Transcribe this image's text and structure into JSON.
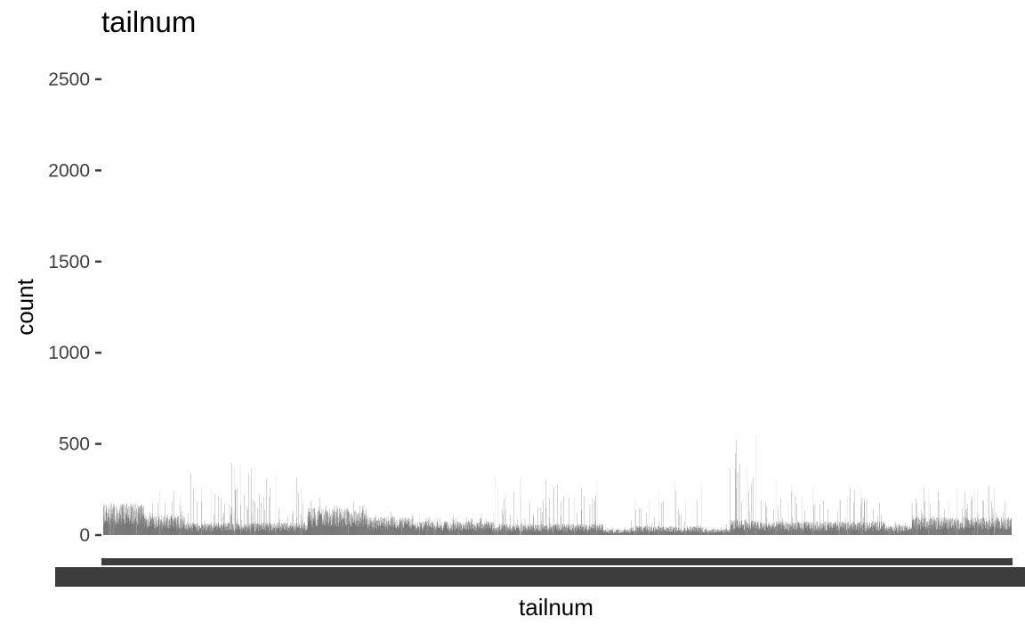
{
  "chart_data": {
    "type": "bar",
    "title": "tailnum",
    "xlabel": "tailnum",
    "ylabel": "count",
    "ylim": [
      0,
      2500
    ],
    "y_ticks": [
      0,
      500,
      1000,
      1500,
      2000,
      2500
    ],
    "grid": false,
    "legend": "none",
    "bar_color": "#3d3d3d",
    "series": [
      {
        "approx_category_count": 4044,
        "segments": [
          {
            "from": 0.0,
            "to": 0.045,
            "base": 140,
            "spikes": 190
          },
          {
            "from": 0.045,
            "to": 0.09,
            "base": 90,
            "spikes": 260
          },
          {
            "from": 0.09,
            "to": 0.225,
            "base": 55,
            "spikes": 400
          },
          {
            "from": 0.225,
            "to": 0.29,
            "base": 120,
            "spikes": 210
          },
          {
            "from": 0.29,
            "to": 0.34,
            "base": 80,
            "spikes": 130
          },
          {
            "from": 0.34,
            "to": 0.43,
            "base": 60,
            "spikes": 120
          },
          {
            "from": 0.43,
            "to": 0.55,
            "base": 50,
            "spikes": 330
          },
          {
            "from": 0.55,
            "to": 0.58,
            "base": 25,
            "spikes": 60
          },
          {
            "from": 0.58,
            "to": 0.66,
            "base": 40,
            "spikes": 300
          },
          {
            "from": 0.66,
            "to": 0.69,
            "base": 30,
            "spikes": 80
          },
          {
            "from": 0.69,
            "to": 0.72,
            "base": 70,
            "spikes": 570
          },
          {
            "from": 0.72,
            "to": 0.86,
            "base": 60,
            "spikes": 300
          },
          {
            "from": 0.86,
            "to": 0.89,
            "base": 45,
            "spikes": 90
          },
          {
            "from": 0.89,
            "to": 1.0,
            "base": 80,
            "spikes": 280
          }
        ]
      }
    ]
  }
}
